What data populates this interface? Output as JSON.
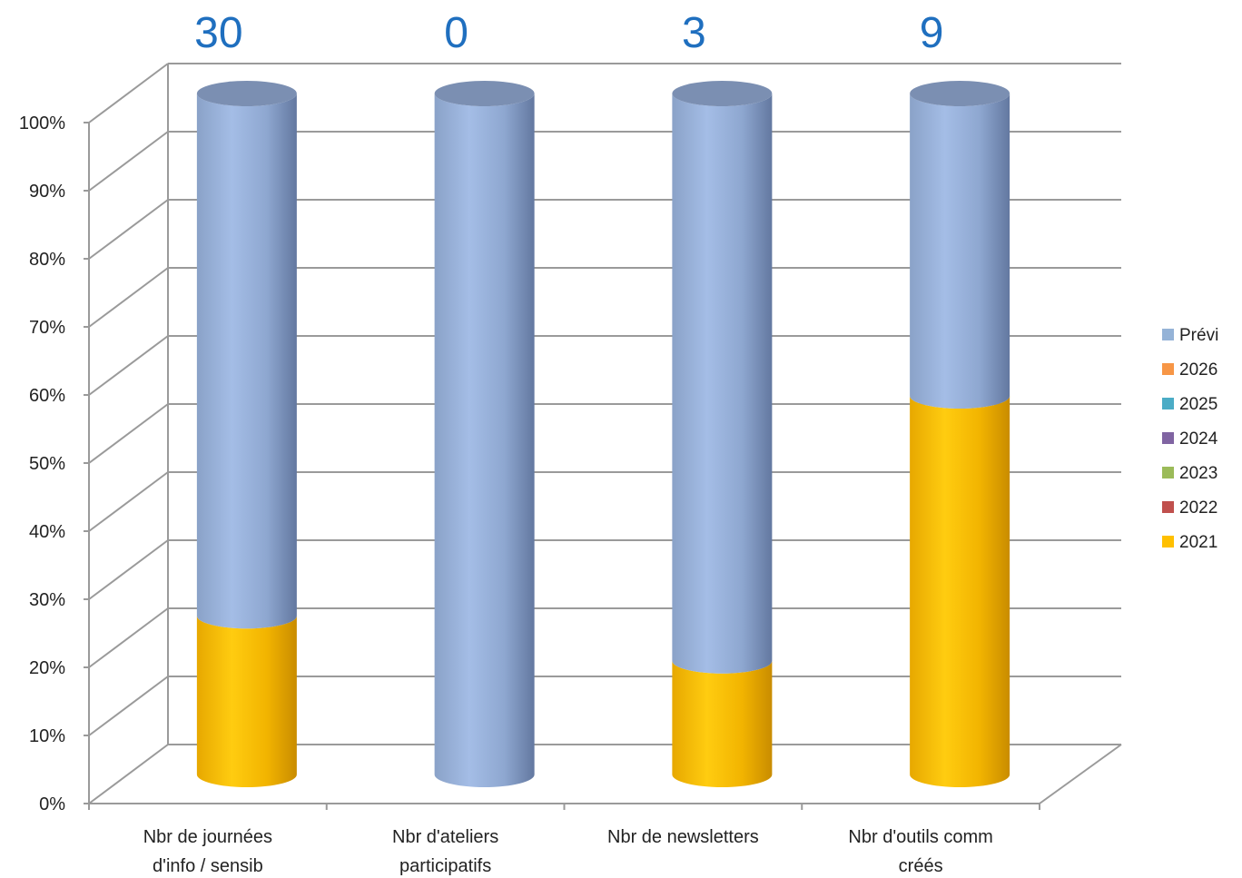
{
  "chart_data": {
    "type": "bar",
    "stacked": "percent",
    "categories": [
      [
        "Nbr de journées",
        "d'info / sensib"
      ],
      [
        "Nbr d'ateliers",
        "participatifs"
      ],
      [
        "Nbr de newsletters"
      ],
      [
        "Nbr d'outils comm",
        "créés"
      ]
    ],
    "totals": [
      "30",
      "0",
      "3",
      "9"
    ],
    "y_ticks": [
      "0%",
      "10%",
      "20%",
      "30%",
      "40%",
      "50%",
      "60%",
      "70%",
      "80%",
      "90%",
      "100%"
    ],
    "ylim": [
      0,
      100
    ],
    "grid": true,
    "legend_position": "right",
    "series": [
      {
        "name": "2021",
        "color": "#ffc000",
        "values": [
          23.3,
          0,
          16.7,
          55.6
        ]
      },
      {
        "name": "2022",
        "color": "#c0504d",
        "values": [
          0,
          0,
          0,
          0
        ]
      },
      {
        "name": "2023",
        "color": "#9bbb59",
        "values": [
          0,
          0,
          0,
          0
        ]
      },
      {
        "name": "2024",
        "color": "#8064a2",
        "values": [
          0,
          0,
          0,
          0
        ]
      },
      {
        "name": "2025",
        "color": "#4bacc6",
        "values": [
          0,
          0,
          0,
          0
        ]
      },
      {
        "name": "2026",
        "color": "#f79646",
        "values": [
          0,
          0,
          0,
          0
        ]
      },
      {
        "name": "Prévi",
        "color": "#95b3d7",
        "values": [
          76.7,
          100,
          83.3,
          44.4
        ]
      }
    ],
    "legend_order": [
      "Prévi",
      "2026",
      "2025",
      "2024",
      "2023",
      "2022",
      "2021"
    ]
  }
}
